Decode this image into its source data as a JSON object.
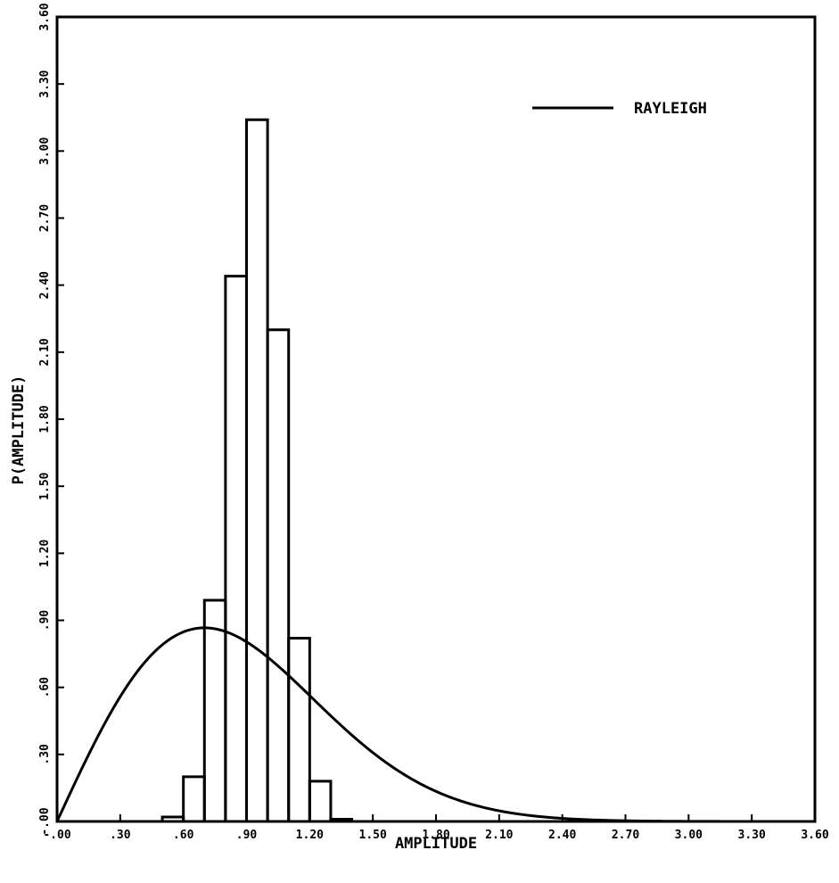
{
  "chart_data": {
    "type": "line",
    "title": "",
    "xlabel": "AMPLITUDE",
    "ylabel": "P(AMPLITUDE)",
    "xlim": [
      -0.0,
      3.6
    ],
    "ylim": [
      0.0,
      3.6
    ],
    "x_ticks": [
      0.0,
      0.3,
      0.6,
      0.9,
      1.2,
      1.5,
      1.8,
      2.1,
      2.4,
      2.7,
      3.0,
      3.3,
      3.6
    ],
    "x_tick_labels": [
      "-.00",
      ".30",
      ".60",
      ".90",
      "1.20",
      "1.50",
      "1.80",
      "2.10",
      "2.40",
      "2.70",
      "3.00",
      "3.30",
      "3.60"
    ],
    "y_ticks": [
      0.0,
      0.3,
      0.6,
      0.9,
      1.2,
      1.5,
      1.8,
      2.1,
      2.4,
      2.7,
      3.0,
      3.3,
      3.6
    ],
    "y_tick_labels": [
      "-.00",
      ".30",
      ".60",
      ".90",
      "1.20",
      "1.50",
      "1.80",
      "2.10",
      "2.40",
      "2.70",
      "3.00",
      "3.30",
      "3.60"
    ],
    "grid": false,
    "legend": {
      "placement": "top-right",
      "entries": [
        {
          "label": "RAYLEIGH"
        }
      ]
    },
    "series": [
      {
        "name": "RAYLEIGH",
        "kind": "curve",
        "sigma": 0.7,
        "x_range": [
          0.0,
          3.6
        ]
      },
      {
        "kind": "histogram",
        "bins": [
          {
            "x0": 0.5,
            "x1": 0.6,
            "value": 0.02
          },
          {
            "x0": 0.6,
            "x1": 0.7,
            "value": 0.2
          },
          {
            "x0": 0.7,
            "x1": 0.8,
            "value": 0.99
          },
          {
            "x0": 0.8,
            "x1": 0.9,
            "value": 2.44
          },
          {
            "x0": 0.9,
            "x1": 1.0,
            "value": 3.14
          },
          {
            "x0": 1.0,
            "x1": 1.1,
            "value": 2.2
          },
          {
            "x0": 1.1,
            "x1": 1.2,
            "value": 0.82
          },
          {
            "x0": 1.2,
            "x1": 1.3,
            "value": 0.18
          },
          {
            "x0": 1.3,
            "x1": 1.4,
            "value": 0.01
          }
        ]
      }
    ]
  }
}
